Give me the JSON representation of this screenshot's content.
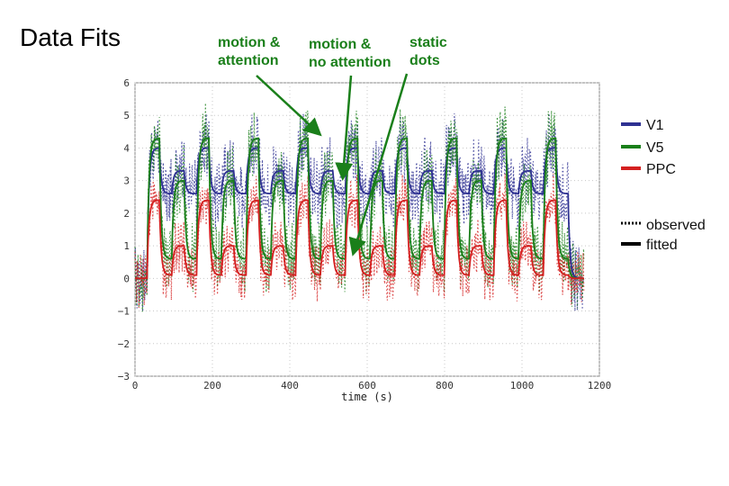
{
  "slide": {
    "title": "Data Fits"
  },
  "annotations": [
    {
      "key": "motion_attention",
      "lines": [
        "motion &",
        "attention"
      ]
    },
    {
      "key": "motion_no_attention",
      "lines": [
        "motion &",
        "no attention"
      ]
    },
    {
      "key": "static_dots",
      "lines": [
        "static",
        "dots"
      ]
    }
  ],
  "legend": {
    "regions": [
      {
        "label": "V1",
        "color": "#2e3192"
      },
      {
        "label": "V5",
        "color": "#1a7f1a"
      },
      {
        "label": "PPC",
        "color": "#d42020"
      }
    ],
    "styles": [
      {
        "label": "observed",
        "style": "dotted"
      },
      {
        "label": "fitted",
        "style": "solid"
      }
    ]
  },
  "chart_data": {
    "type": "line",
    "title": "",
    "xlabel": "time (s)",
    "ylabel": "",
    "xlim": [
      0,
      1200
    ],
    "ylim": [
      -3,
      6
    ],
    "xticks": [
      0,
      200,
      400,
      600,
      800,
      1000,
      1200
    ],
    "yticks": [
      -3,
      -2,
      -1,
      0,
      1,
      2,
      3,
      4,
      5,
      6
    ],
    "grid": true,
    "legend_position": "right",
    "block_length_s": 32,
    "baseline_duration_s": 32,
    "condition_sequence": [
      "motion & attention",
      "static dots",
      "motion & no attention",
      "static dots",
      "motion & attention",
      "static dots",
      "motion & no attention",
      "static dots",
      "motion & attention",
      "static dots",
      "motion & no attention",
      "static dots",
      "motion & attention",
      "static dots",
      "motion & no attention",
      "static dots",
      "motion & attention",
      "static dots",
      "motion & no attention",
      "static dots",
      "motion & attention",
      "static dots",
      "motion & no attention",
      "static dots",
      "motion & attention",
      "static dots",
      "motion & no attention",
      "static dots",
      "motion & attention",
      "static dots",
      "motion & no attention",
      "static dots",
      "motion & attention",
      "static dots"
    ],
    "series": [
      {
        "name": "V1",
        "color": "#2e3192",
        "levels": {
          "motion & attention": 4.0,
          "motion & no attention": 3.3,
          "static dots": 2.6,
          "baseline": 0
        }
      },
      {
        "name": "V5",
        "color": "#1a7f1a",
        "levels": {
          "motion & attention": 4.3,
          "motion & no attention": 3.0,
          "static dots": 0.6,
          "baseline": 0
        }
      },
      {
        "name": "PPC",
        "color": "#d42020",
        "levels": {
          "motion & attention": 2.4,
          "motion & no attention": 1.0,
          "static dots": 0.1,
          "baseline": 0
        }
      }
    ]
  }
}
